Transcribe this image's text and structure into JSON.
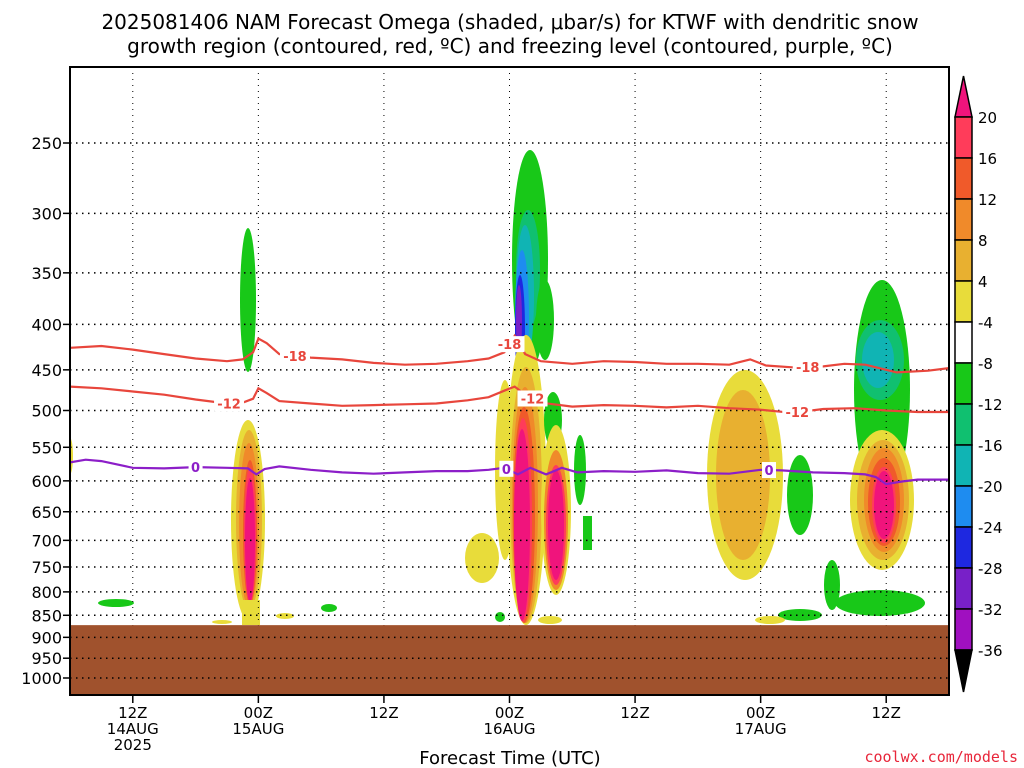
{
  "chart_data": {
    "type": "heatmap",
    "title_lines": [
      "2025081406 NAM Forecast Omega (shaded, μbar/s) for KTWF with dendritic snow",
      "growth region (contoured, red, ºC) and freezing level (contoured, purple, ºC)"
    ],
    "xlabel": "Forecast Time (UTC)",
    "ylabel": "",
    "x_unit": "hours since 2025-08-14 06Z",
    "xlim": [
      0,
      84
    ],
    "ylim": [
      1000,
      200
    ],
    "y_scale": "log",
    "y_ticks": [
      250,
      300,
      350,
      400,
      450,
      500,
      550,
      600,
      650,
      700,
      750,
      800,
      850,
      900,
      950,
      1000
    ],
    "x_ticks": [
      {
        "x": 6,
        "line1": "12Z",
        "line2": "14AUG",
        "line3": "2025"
      },
      {
        "x": 18,
        "line1": "00Z",
        "line2": "15AUG",
        "line3": ""
      },
      {
        "x": 30,
        "line1": "12Z",
        "line2": "",
        "line3": ""
      },
      {
        "x": 42,
        "line1": "00Z",
        "line2": "16AUG",
        "line3": ""
      },
      {
        "x": 54,
        "line1": "12Z",
        "line2": "",
        "line3": ""
      },
      {
        "x": 66,
        "line1": "00Z",
        "line2": "17AUG",
        "line3": ""
      },
      {
        "x": 78,
        "line1": "12Z",
        "line2": "",
        "line3": ""
      }
    ],
    "grid": true,
    "colorbar": {
      "placement": "right",
      "labels": [
        "20",
        "16",
        "12",
        "8",
        "4",
        "-4",
        "-8",
        "-12",
        "-16",
        "-20",
        "-24",
        "-28",
        "-32",
        "-36"
      ],
      "colors": [
        "#ff3c5a",
        "#f05a2a",
        "#f08a2a",
        "#e8b030",
        "#e8dc3a",
        "#ffffff",
        "#18c818",
        "#10c070",
        "#10b4b4",
        "#1e8cf0",
        "#1e28e0",
        "#7820c8",
        "#a010c0",
        "#a0a0a0"
      ],
      "top_arrow_color": "#f0147c",
      "bottom_arrow_color": "#000000"
    },
    "terrain": {
      "pressure": 872,
      "color": "#a0522d"
    },
    "contours": [
      {
        "name": "-18",
        "color": "#e8463c",
        "label_positions": [
          21.5,
          42,
          70.5
        ],
        "points": [
          [
            0,
            425
          ],
          [
            3,
            423
          ],
          [
            6,
            427
          ],
          [
            9,
            432
          ],
          [
            12,
            437
          ],
          [
            15,
            440
          ],
          [
            16.5,
            438
          ],
          [
            17.5,
            430
          ],
          [
            18,
            415
          ],
          [
            18.8,
            420
          ],
          [
            20,
            432
          ],
          [
            23,
            436
          ],
          [
            26,
            438
          ],
          [
            29,
            442
          ],
          [
            32,
            444
          ],
          [
            35,
            443
          ],
          [
            38,
            440
          ],
          [
            40,
            437
          ],
          [
            41.5,
            430
          ],
          [
            42.5,
            412
          ],
          [
            43.5,
            432
          ],
          [
            45,
            440
          ],
          [
            48,
            443
          ],
          [
            51,
            440
          ],
          [
            54,
            441
          ],
          [
            57,
            443
          ],
          [
            60,
            443
          ],
          [
            63,
            444
          ],
          [
            65,
            438
          ],
          [
            66.5,
            445
          ],
          [
            69,
            447
          ],
          [
            72,
            446
          ],
          [
            74,
            443
          ],
          [
            76,
            444
          ],
          [
            79,
            453
          ],
          [
            82,
            451
          ],
          [
            84,
            448
          ]
        ]
      },
      {
        "name": "-12",
        "color": "#e8463c",
        "label_positions": [
          15.2,
          44.2,
          69.5
        ],
        "points": [
          [
            0,
            470
          ],
          [
            3,
            472
          ],
          [
            6,
            476
          ],
          [
            9,
            480
          ],
          [
            12,
            486
          ],
          [
            15,
            491
          ],
          [
            16.5,
            490
          ],
          [
            17.5,
            485
          ],
          [
            18,
            472
          ],
          [
            18.8,
            478
          ],
          [
            20,
            488
          ],
          [
            23,
            491
          ],
          [
            26,
            494
          ],
          [
            29,
            493
          ],
          [
            32,
            492
          ],
          [
            35,
            491
          ],
          [
            38,
            487
          ],
          [
            40,
            483
          ],
          [
            41.5,
            475
          ],
          [
            42.5,
            470
          ],
          [
            43.5,
            480
          ],
          [
            45,
            490
          ],
          [
            48,
            495
          ],
          [
            51,
            493
          ],
          [
            54,
            494
          ],
          [
            57,
            496
          ],
          [
            60,
            494
          ],
          [
            63,
            497
          ],
          [
            66,
            499
          ],
          [
            69,
            503
          ],
          [
            72,
            498
          ],
          [
            75,
            497
          ],
          [
            78,
            500
          ],
          [
            81,
            502
          ],
          [
            84,
            502
          ]
        ]
      },
      {
        "name": "0",
        "color": "#8c1ec8",
        "label_positions": [
          12,
          41.7,
          66.8
        ],
        "points": [
          [
            0,
            572
          ],
          [
            1.5,
            568
          ],
          [
            3,
            570
          ],
          [
            6,
            580
          ],
          [
            9,
            581
          ],
          [
            12,
            579
          ],
          [
            15,
            580
          ],
          [
            17,
            581
          ],
          [
            17.8,
            590
          ],
          [
            18.6,
            582
          ],
          [
            20,
            578
          ],
          [
            23,
            583
          ],
          [
            26,
            587
          ],
          [
            29,
            589
          ],
          [
            32,
            587
          ],
          [
            35,
            585
          ],
          [
            38,
            585
          ],
          [
            40,
            583
          ],
          [
            41.5,
            580
          ],
          [
            42.8,
            590
          ],
          [
            44,
            580
          ],
          [
            45.5,
            590
          ],
          [
            47,
            580
          ],
          [
            48.5,
            587
          ],
          [
            51,
            585
          ],
          [
            54,
            586
          ],
          [
            57,
            584
          ],
          [
            60,
            588
          ],
          [
            63,
            589
          ],
          [
            66,
            583
          ],
          [
            68,
            584
          ],
          [
            71,
            587
          ],
          [
            74,
            588
          ],
          [
            76,
            590
          ],
          [
            77,
            594
          ],
          [
            78,
            605
          ],
          [
            79.5,
            601
          ],
          [
            81,
            598
          ],
          [
            84,
            598
          ]
        ]
      }
    ]
  },
  "credit": "coolwx.com/models"
}
